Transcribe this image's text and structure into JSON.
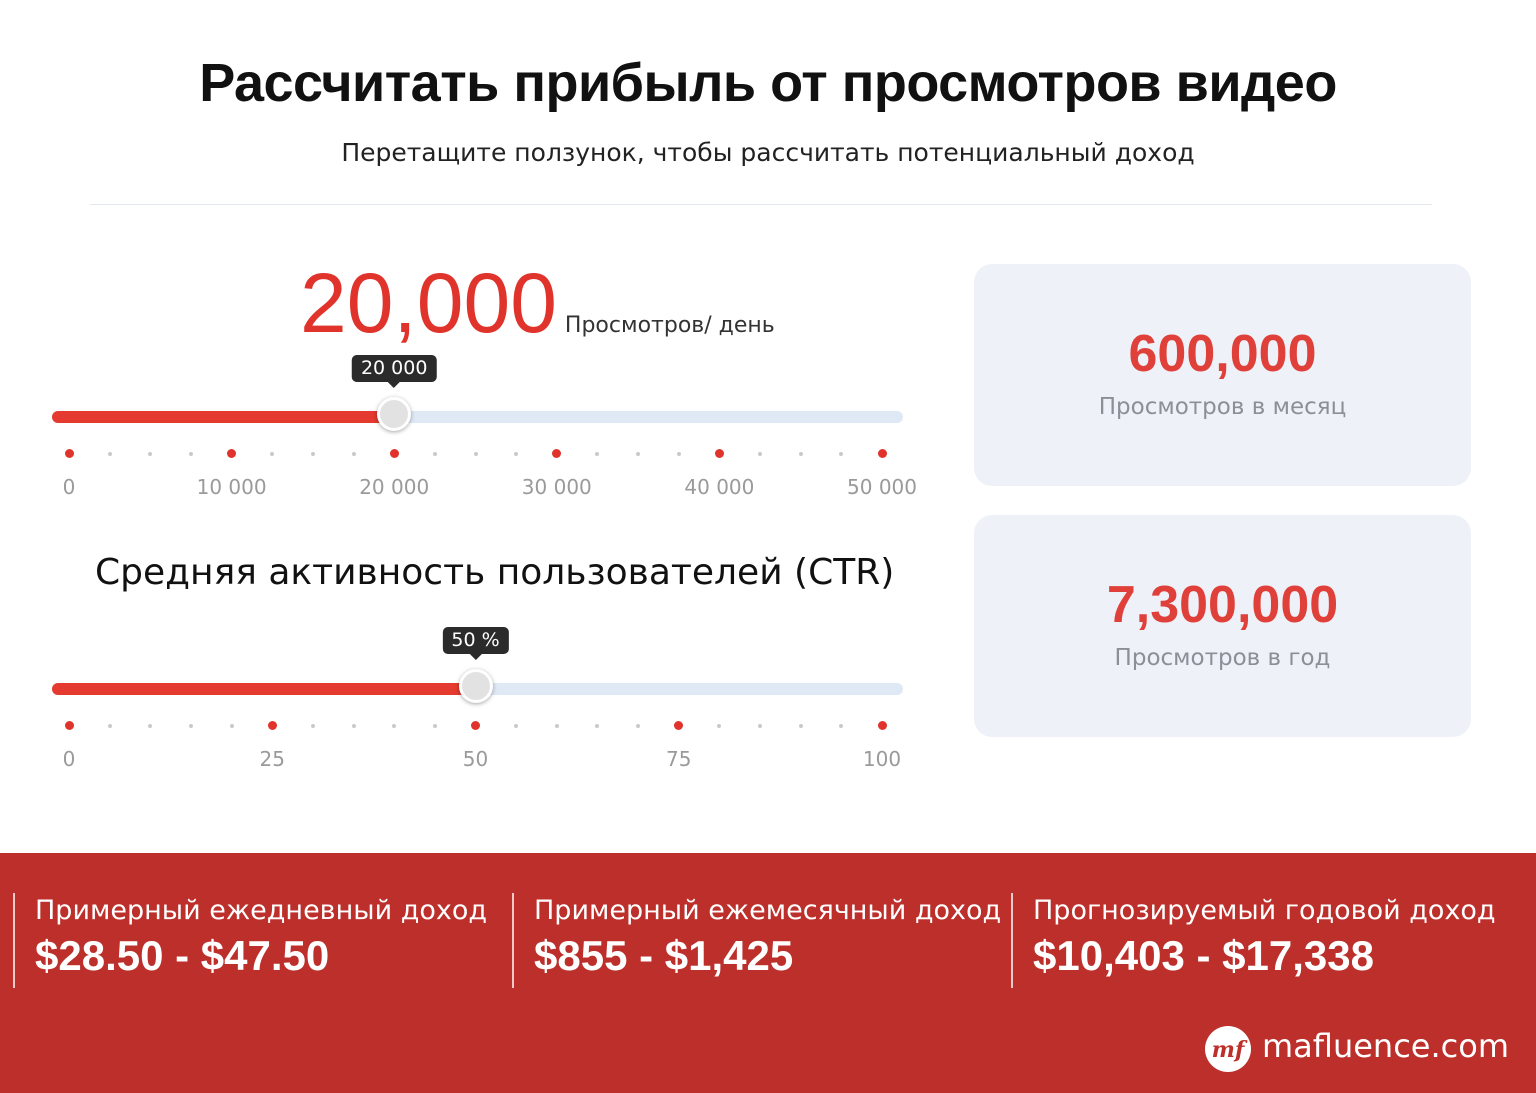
{
  "header": {
    "title": "Рассчитать прибыль от просмотров видео",
    "subtitle": "Перетащите ползунок, чтобы рассчитать потенциальный доход"
  },
  "views_slider": {
    "value_display": "20,000",
    "unit": "Просмотров/ день",
    "tooltip": "20 000",
    "min": 0,
    "max": 50000,
    "value": 20000,
    "tick_labels": [
      "0",
      "10 000",
      "20 000",
      "30 000",
      "40 000",
      "50 000"
    ]
  },
  "ctr_slider": {
    "heading": "Средняя активность пользователей (CTR)",
    "tooltip": "50 %",
    "min": 0,
    "max": 100,
    "value": 50,
    "tick_labels": [
      "0",
      "25",
      "50",
      "75",
      "100"
    ]
  },
  "stats": {
    "monthly": {
      "value": "600,000",
      "label": "Просмотров в месяц"
    },
    "yearly": {
      "value": "7,300,000",
      "label": "Просмотров в год"
    }
  },
  "income": {
    "daily": {
      "label": "Примерный ежедневный доход",
      "value": "$28.50 - $47.50"
    },
    "monthly": {
      "label": "Примерный ежемесячный доход",
      "value": "$855 - $1,425"
    },
    "yearly": {
      "label": "Прогнозируемый годовой доход",
      "value": "$10,403 - $17,338"
    }
  },
  "brand": {
    "logo_text": "mf",
    "name": "mafluence.com"
  },
  "colors": {
    "accent": "#e53a2f",
    "track": "#dfe9f6",
    "band": "#bc2f2a",
    "card": "#eef2f8"
  }
}
